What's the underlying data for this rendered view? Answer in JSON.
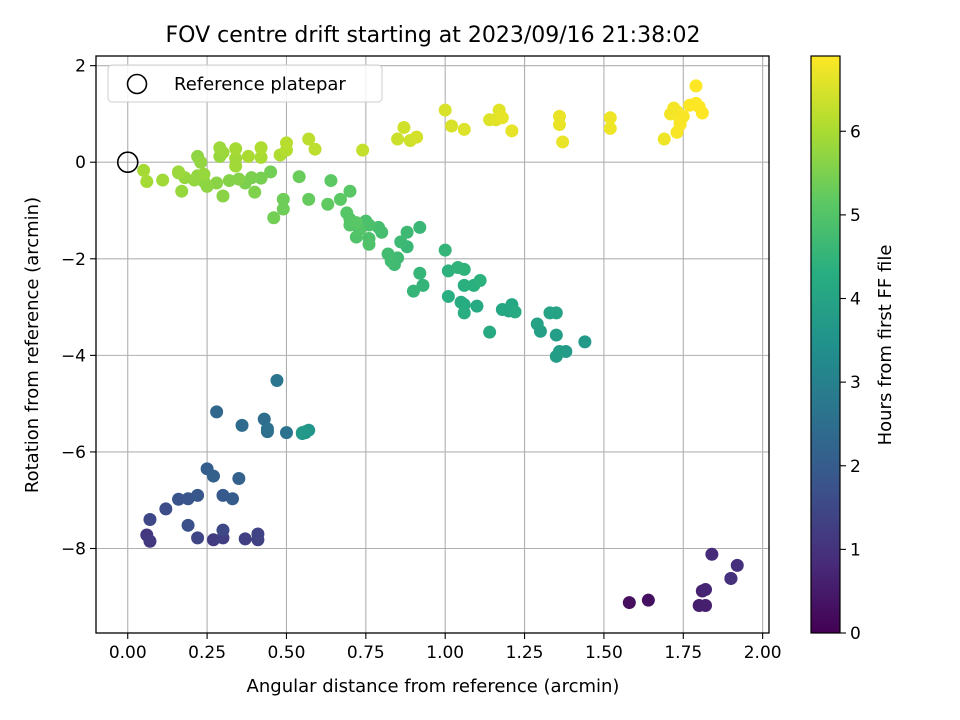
{
  "chart_data": {
    "type": "scatter",
    "title": "FOV centre drift starting at 2023/09/16 21:38:02",
    "xlabel": "Angular distance from reference (arcmin)",
    "ylabel": "Rotation from reference (arcmin)",
    "colorbar_label": "Hours from first FF file",
    "xlim": [
      -0.1,
      2.02
    ],
    "ylim": [
      -9.75,
      2.2
    ],
    "clim": [
      0,
      6.9
    ],
    "colormap": "viridis",
    "xticks": [
      0.0,
      0.25,
      0.5,
      0.75,
      1.0,
      1.25,
      1.5,
      1.75,
      2.0
    ],
    "xtick_labels": [
      "0.00",
      "0.25",
      "0.50",
      "0.75",
      "1.00",
      "1.25",
      "1.50",
      "1.75",
      "2.00"
    ],
    "yticks": [
      2,
      0,
      -2,
      -4,
      -6,
      -8
    ],
    "ytick_labels": [
      "2",
      "0",
      "−2",
      "−4",
      "−6",
      "−8"
    ],
    "cticks": [
      0,
      1,
      2,
      3,
      4,
      5,
      6
    ],
    "ctick_labels": [
      "0",
      "1",
      "2",
      "3",
      "4",
      "5",
      "6"
    ],
    "grid": true,
    "legend": {
      "position": "top-left",
      "entries": [
        "Reference platepar"
      ]
    },
    "reference_point": {
      "x": 0.0,
      "y": 0.0
    },
    "points": [
      [
        1.58,
        -9.12,
        0.25
      ],
      [
        1.64,
        -9.07,
        0.3
      ],
      [
        1.8,
        -9.18,
        0.55
      ],
      [
        1.82,
        -9.18,
        0.6
      ],
      [
        1.81,
        -8.88,
        0.65
      ],
      [
        1.82,
        -8.85,
        0.7
      ],
      [
        1.9,
        -8.62,
        0.8
      ],
      [
        1.92,
        -8.35,
        0.9
      ],
      [
        1.84,
        -8.12,
        0.85
      ],
      [
        1.9,
        -8.62,
        0.95
      ],
      [
        0.06,
        -7.72,
        1.1
      ],
      [
        0.07,
        -7.85,
        1.15
      ],
      [
        0.27,
        -7.82,
        1.2
      ],
      [
        0.3,
        -7.78,
        1.25
      ],
      [
        0.37,
        -7.8,
        1.3
      ],
      [
        0.41,
        -7.82,
        1.35
      ],
      [
        0.41,
        -7.7,
        1.4
      ],
      [
        0.22,
        -7.78,
        1.45
      ],
      [
        0.3,
        -7.62,
        1.5
      ],
      [
        0.07,
        -7.4,
        1.5
      ],
      [
        0.12,
        -7.18,
        1.6
      ],
      [
        0.19,
        -7.52,
        1.7
      ],
      [
        0.16,
        -6.98,
        1.75
      ],
      [
        0.19,
        -6.97,
        1.8
      ],
      [
        0.22,
        -6.9,
        1.9
      ],
      [
        0.3,
        -6.9,
        1.95
      ],
      [
        0.33,
        -6.97,
        2.0
      ],
      [
        0.25,
        -6.35,
        2.05
      ],
      [
        0.27,
        -6.5,
        2.1
      ],
      [
        0.35,
        -6.55,
        2.15
      ],
      [
        0.28,
        -5.17,
        2.3
      ],
      [
        0.36,
        -5.45,
        2.4
      ],
      [
        0.43,
        -5.32,
        2.45
      ],
      [
        0.44,
        -5.58,
        2.5
      ],
      [
        0.44,
        -5.52,
        2.55
      ],
      [
        0.5,
        -5.6,
        2.6
      ],
      [
        0.47,
        -4.52,
        2.7
      ],
      [
        0.55,
        -5.62,
        3.5
      ],
      [
        0.56,
        -5.6,
        3.55
      ],
      [
        0.57,
        -5.55,
        3.6
      ],
      [
        0.56,
        -5.58,
        3.65
      ],
      [
        0.55,
        -5.6,
        3.7
      ],
      [
        1.44,
        -3.72,
        3.7
      ],
      [
        1.38,
        -3.92,
        3.75
      ],
      [
        1.35,
        -4.02,
        3.8
      ],
      [
        1.36,
        -3.92,
        3.8
      ],
      [
        1.35,
        -3.58,
        3.85
      ],
      [
        1.3,
        -3.5,
        3.9
      ],
      [
        1.29,
        -3.35,
        3.95
      ],
      [
        1.33,
        -3.12,
        4.0
      ],
      [
        1.35,
        -3.12,
        4.0
      ],
      [
        1.2,
        -3.08,
        4.05
      ],
      [
        1.18,
        -3.05,
        4.1
      ],
      [
        1.21,
        -2.95,
        4.1
      ],
      [
        1.22,
        -3.1,
        4.15
      ],
      [
        1.14,
        -3.52,
        4.15
      ],
      [
        1.1,
        -2.98,
        4.2
      ],
      [
        1.06,
        -2.95,
        4.25
      ],
      [
        1.05,
        -2.9,
        4.25
      ],
      [
        1.06,
        -3.12,
        4.3
      ],
      [
        1.01,
        -2.78,
        4.3
      ],
      [
        1.06,
        -2.55,
        4.35
      ],
      [
        1.09,
        -2.55,
        4.35
      ],
      [
        1.11,
        -2.45,
        4.4
      ],
      [
        1.01,
        -2.25,
        4.4
      ],
      [
        1.04,
        -2.18,
        4.45
      ],
      [
        1.06,
        -2.22,
        4.45
      ],
      [
        1.0,
        -1.82,
        4.5
      ],
      [
        0.93,
        -2.55,
        4.5
      ],
      [
        0.92,
        -2.3,
        4.55
      ],
      [
        0.9,
        -2.67,
        4.55
      ],
      [
        0.92,
        -1.35,
        4.6
      ],
      [
        0.88,
        -1.75,
        4.6
      ],
      [
        0.86,
        -1.65,
        4.65
      ],
      [
        0.88,
        -1.45,
        4.65
      ],
      [
        0.85,
        -1.98,
        4.7
      ],
      [
        0.84,
        -2.12,
        4.7
      ],
      [
        0.83,
        -2.05,
        4.75
      ],
      [
        0.82,
        -1.9,
        4.75
      ],
      [
        0.8,
        -1.45,
        4.8
      ],
      [
        0.79,
        -1.35,
        4.8
      ],
      [
        0.75,
        -1.22,
        4.85
      ],
      [
        0.76,
        -1.3,
        4.9
      ],
      [
        0.76,
        -1.58,
        4.9
      ],
      [
        0.76,
        -1.7,
        4.95
      ],
      [
        0.72,
        -1.55,
        4.95
      ],
      [
        0.73,
        -1.4,
        5.0
      ],
      [
        0.7,
        -1.3,
        5.0
      ],
      [
        0.7,
        -1.18,
        5.05
      ],
      [
        0.69,
        -1.05,
        5.05
      ],
      [
        0.72,
        -1.25,
        5.1
      ],
      [
        0.7,
        -0.6,
        5.1
      ],
      [
        0.67,
        -0.77,
        5.15
      ],
      [
        0.64,
        -0.38,
        5.15
      ],
      [
        0.63,
        -0.87,
        5.2
      ],
      [
        0.57,
        -0.77,
        5.25
      ],
      [
        0.54,
        -0.3,
        5.3
      ],
      [
        0.49,
        -0.77,
        5.35
      ],
      [
        0.49,
        -0.97,
        5.35
      ],
      [
        0.46,
        -1.15,
        5.4
      ],
      [
        0.45,
        -0.2,
        5.4
      ],
      [
        0.42,
        -0.33,
        5.45
      ],
      [
        0.39,
        -0.32,
        5.5
      ],
      [
        0.37,
        -0.43,
        5.5
      ],
      [
        0.4,
        -0.62,
        5.55
      ],
      [
        0.35,
        -0.35,
        5.6
      ],
      [
        0.32,
        -0.38,
        5.6
      ],
      [
        0.3,
        -0.7,
        5.65
      ],
      [
        0.28,
        -0.43,
        5.65
      ],
      [
        0.25,
        -0.5,
        5.7
      ],
      [
        0.24,
        -0.4,
        5.7
      ],
      [
        0.22,
        -0.28,
        5.75
      ],
      [
        0.21,
        -0.37,
        5.75
      ],
      [
        0.18,
        -0.32,
        5.8
      ],
      [
        0.17,
        -0.6,
        5.8
      ],
      [
        0.16,
        -0.2,
        5.85
      ],
      [
        0.16,
        -0.22,
        5.85
      ],
      [
        0.11,
        -0.37,
        5.9
      ],
      [
        0.06,
        -0.4,
        5.95
      ],
      [
        0.05,
        -0.17,
        5.95
      ],
      [
        0.22,
        0.12,
        5.7
      ],
      [
        0.23,
        0.0,
        5.75
      ],
      [
        0.24,
        -0.25,
        5.8
      ],
      [
        0.29,
        0.12,
        5.8
      ],
      [
        0.29,
        0.3,
        5.85
      ],
      [
        0.3,
        0.2,
        5.85
      ],
      [
        0.34,
        0.08,
        5.9
      ],
      [
        0.34,
        -0.08,
        5.9
      ],
      [
        0.34,
        0.28,
        5.95
      ],
      [
        0.38,
        0.12,
        6.0
      ],
      [
        0.42,
        0.1,
        6.0
      ],
      [
        0.42,
        0.3,
        6.05
      ],
      [
        0.48,
        0.15,
        6.05
      ],
      [
        0.5,
        0.25,
        6.1
      ],
      [
        0.5,
        0.4,
        6.15
      ],
      [
        0.57,
        0.48,
        6.2
      ],
      [
        0.59,
        0.27,
        6.2
      ],
      [
        0.74,
        0.25,
        6.3
      ],
      [
        0.85,
        0.48,
        6.35
      ],
      [
        0.87,
        0.72,
        6.4
      ],
      [
        0.89,
        0.45,
        6.4
      ],
      [
        0.91,
        0.52,
        6.45
      ],
      [
        1.0,
        1.08,
        6.5
      ],
      [
        1.02,
        0.75,
        6.5
      ],
      [
        1.06,
        0.68,
        6.55
      ],
      [
        1.14,
        0.88,
        6.55
      ],
      [
        1.16,
        0.88,
        6.6
      ],
      [
        1.17,
        1.08,
        6.6
      ],
      [
        1.18,
        0.92,
        6.65
      ],
      [
        1.21,
        0.65,
        6.65
      ],
      [
        1.36,
        0.95,
        6.7
      ],
      [
        1.36,
        0.78,
        6.7
      ],
      [
        1.37,
        0.42,
        6.7
      ],
      [
        1.52,
        0.92,
        6.75
      ],
      [
        1.52,
        0.7,
        6.75
      ],
      [
        1.69,
        0.48,
        6.75
      ],
      [
        1.71,
        1.0,
        6.8
      ],
      [
        1.72,
        1.12,
        6.8
      ],
      [
        1.73,
        1.05,
        6.8
      ],
      [
        1.73,
        0.62,
        6.85
      ],
      [
        1.74,
        0.85,
        6.85
      ],
      [
        1.75,
        0.95,
        6.85
      ],
      [
        1.74,
        0.78,
        6.85
      ],
      [
        1.77,
        1.18,
        6.9
      ],
      [
        1.79,
        1.22,
        6.9
      ],
      [
        1.8,
        1.15,
        6.9
      ],
      [
        1.81,
        1.02,
        6.9
      ],
      [
        1.79,
        1.58,
        6.9
      ]
    ]
  }
}
